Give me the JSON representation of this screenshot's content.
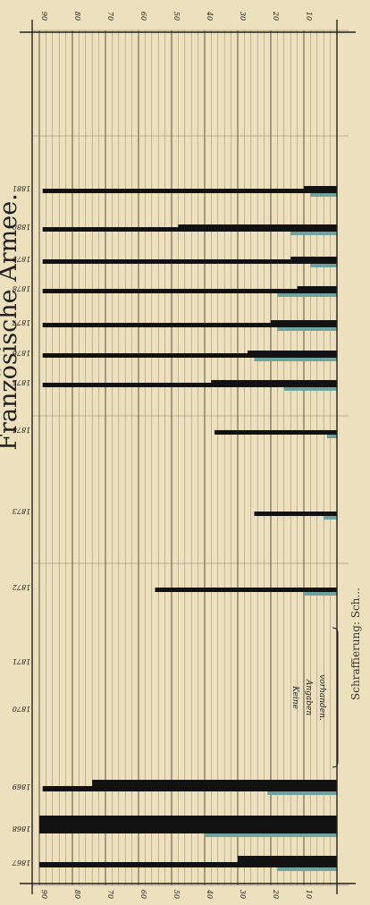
{
  "title": "Französische Armee.",
  "footnote": "Schraffierung: Sch...",
  "colors": {
    "paper": "#ece0bd",
    "grid_minor": "#8a7f64",
    "grid_major": "#4a4334",
    "bar_black": "#121212",
    "bar_teal": "#6ea3a0",
    "ink": "#222222"
  },
  "chart_data": {
    "type": "bar",
    "orientation": "horizontal",
    "scale": {
      "min": 0,
      "max": 90,
      "direction": "increasing-to-left"
    },
    "ticks_top": [
      "90",
      "80",
      "70",
      "60",
      "50",
      "40",
      "30",
      "20",
      "10"
    ],
    "ticks_bottom": [
      "90",
      "80",
      "70",
      "60",
      "50",
      "40",
      "30",
      "20",
      "10"
    ],
    "grid": "on",
    "annotation": "Keine Angaben vorhanden.",
    "annotation_years": [
      "1870",
      "1871"
    ],
    "years": [
      {
        "label": "1881",
        "black_thin": 89,
        "black_thick": 10,
        "teal": 8
      },
      {
        "label": "1880",
        "black_thin": 89,
        "black_thick": 48,
        "teal": 14
      },
      {
        "label": "1879",
        "black_thin": 89,
        "black_thick": 14,
        "teal": 8
      },
      {
        "label": "1878",
        "black_thin": 89,
        "black_thick": 12,
        "teal": 18
      },
      {
        "label": "1877",
        "black_thin": 89,
        "black_thick": 20,
        "teal": 18
      },
      {
        "label": "1876",
        "black_thin": 89,
        "black_thick": 27,
        "teal": 25
      },
      {
        "label": "1875",
        "black_thin": 89,
        "black_thick": 38,
        "teal": 16
      },
      {
        "label": "1874",
        "black_thin": 37,
        "black_thick": 0,
        "teal": 3
      },
      {
        "label": "1873",
        "black_thin": 25,
        "black_thick": 0,
        "teal": 4
      },
      {
        "label": "1872",
        "black_thin": 55,
        "black_thick": 0,
        "teal": 10
      },
      {
        "label": "1871",
        "black_thin": 0,
        "black_thick": 0,
        "teal": 0
      },
      {
        "label": "1870",
        "black_thin": 0,
        "black_thick": 0,
        "teal": 0
      },
      {
        "label": "1869",
        "black_thin": 89,
        "black_thick": 74,
        "teal": 21
      },
      {
        "label": "1868",
        "black_thin": 90,
        "black_thick": 46,
        "teal": 40
      },
      {
        "label": "1867",
        "black_thin": 90,
        "black_thick": 30,
        "teal": 18
      }
    ]
  }
}
